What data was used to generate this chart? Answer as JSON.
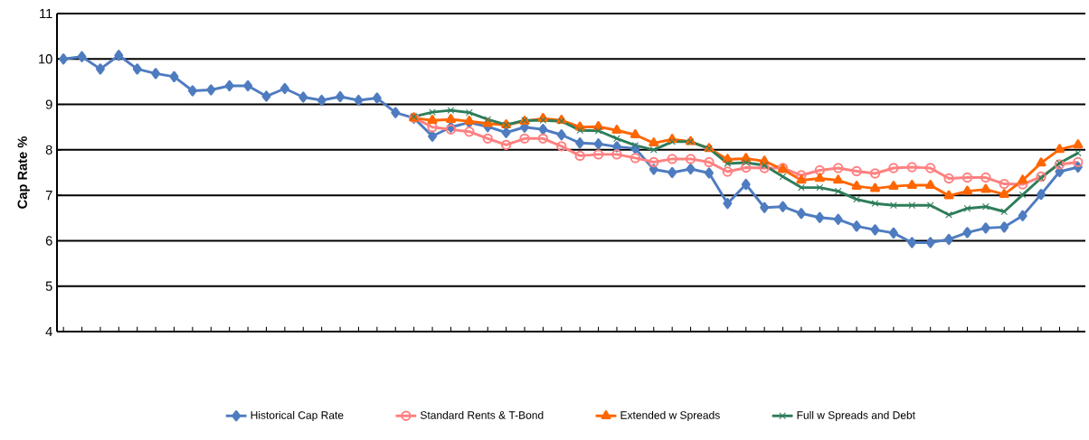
{
  "chart_data": {
    "type": "line",
    "ylabel": "Cap Rate %",
    "categories": [
      null,
      null,
      null,
      null,
      null,
      null,
      null,
      null,
      null,
      null,
      null,
      null,
      null,
      null,
      null,
      null,
      null,
      null,
      null,
      null,
      null,
      null,
      null,
      null,
      null,
      null,
      null,
      null,
      null,
      null,
      null,
      null,
      null,
      null,
      null,
      null,
      null,
      null,
      null,
      null,
      null,
      null,
      null,
      null,
      null,
      null,
      null,
      null,
      null,
      null,
      null,
      null,
      null,
      null,
      null,
      null
    ],
    "ylim": [
      4,
      11
    ],
    "yticks": [
      4,
      5,
      6,
      7,
      8,
      9,
      10,
      11
    ],
    "grid": "y",
    "legend": "bottom",
    "tick_labels": "y",
    "series": [
      {
        "name": "Historical Cap Rate",
        "color": "#4f7cc0",
        "marker": "diamond",
        "values": [
          10.0,
          10.05,
          9.78,
          10.08,
          9.78,
          9.68,
          9.61,
          9.3,
          9.32,
          9.41,
          9.41,
          9.18,
          9.35,
          9.16,
          9.09,
          9.17,
          9.09,
          9.14,
          8.82,
          8.7,
          8.3,
          8.5,
          8.6,
          8.51,
          8.38,
          8.5,
          8.45,
          8.33,
          8.15,
          8.13,
          8.07,
          8.03,
          7.57,
          7.5,
          7.58,
          7.49,
          6.82,
          7.24,
          6.73,
          6.75,
          6.6,
          6.51,
          6.47,
          6.32,
          6.24,
          6.17,
          5.96,
          5.96,
          6.03,
          6.18,
          6.28,
          6.3,
          6.55,
          7.02,
          7.52,
          7.62
        ]
      },
      {
        "name": "Standard Rents & T-Bond",
        "color": "#ff8080",
        "marker": "circle",
        "values": [
          null,
          null,
          null,
          null,
          null,
          null,
          null,
          null,
          null,
          null,
          null,
          null,
          null,
          null,
          null,
          null,
          null,
          null,
          null,
          8.71,
          8.5,
          8.45,
          8.4,
          8.25,
          8.11,
          8.25,
          8.25,
          8.08,
          7.87,
          7.9,
          7.9,
          7.82,
          7.73,
          7.8,
          7.8,
          7.73,
          7.52,
          7.61,
          7.6,
          7.6,
          7.44,
          7.55,
          7.6,
          7.53,
          7.48,
          7.6,
          7.62,
          7.6,
          7.37,
          7.39,
          7.39,
          7.25,
          7.24,
          7.41,
          7.68,
          7.73
        ]
      },
      {
        "name": "Extended w Spreads",
        "color": "#ff6600",
        "marker": "triangle",
        "values": [
          null,
          null,
          null,
          null,
          null,
          null,
          null,
          null,
          null,
          null,
          null,
          null,
          null,
          null,
          null,
          null,
          null,
          null,
          null,
          8.7,
          8.65,
          8.67,
          8.63,
          8.58,
          8.55,
          8.63,
          8.69,
          8.65,
          8.5,
          8.51,
          8.43,
          8.33,
          8.15,
          8.23,
          8.18,
          8.03,
          7.79,
          7.81,
          7.75,
          7.57,
          7.33,
          7.37,
          7.33,
          7.2,
          7.15,
          7.2,
          7.22,
          7.22,
          6.99,
          7.09,
          7.13,
          7.02,
          7.33,
          7.71,
          8.01,
          8.11
        ]
      },
      {
        "name": "Full w Spreads and Debt",
        "color": "#2e7d5a",
        "marker": "cross",
        "values": [
          null,
          null,
          null,
          null,
          null,
          null,
          null,
          null,
          null,
          null,
          null,
          null,
          null,
          null,
          null,
          null,
          null,
          null,
          null,
          8.73,
          8.83,
          8.87,
          8.82,
          8.67,
          8.55,
          8.65,
          8.65,
          8.63,
          8.43,
          8.42,
          8.25,
          8.1,
          8.0,
          8.18,
          8.18,
          8.03,
          7.7,
          7.72,
          7.66,
          7.41,
          7.17,
          7.17,
          7.09,
          6.91,
          6.82,
          6.78,
          6.78,
          6.78,
          6.57,
          6.71,
          6.75,
          6.64,
          7.01,
          7.38,
          7.71,
          7.93
        ]
      }
    ]
  }
}
